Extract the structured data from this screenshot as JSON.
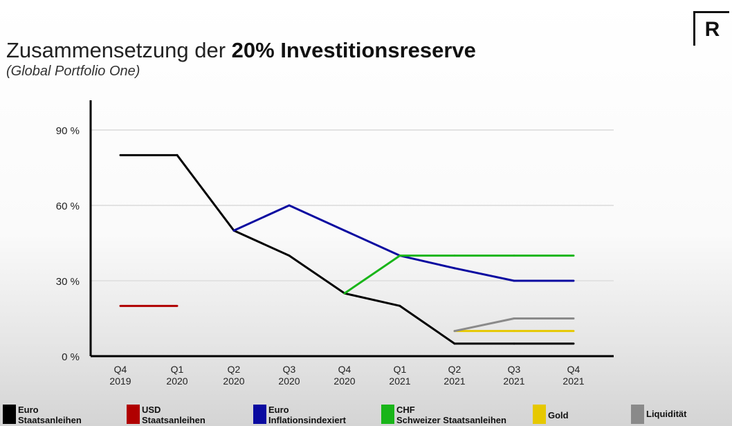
{
  "header": {
    "title_normal": "Zusammensetzung der ",
    "title_bold": "20% Investitionsreserve",
    "subtitle": "(Global Portfolio One)",
    "logo_letter": "R"
  },
  "chart_data": {
    "type": "line",
    "title": "Zusammensetzung der 20% Investitionsreserve",
    "subtitle": "(Global Portfolio One)",
    "xlabel": "",
    "ylabel": "",
    "ylim": [
      0,
      100
    ],
    "grid": true,
    "legend_position": "bottom",
    "y_ticks": [
      {
        "value": 0,
        "label": "0 %"
      },
      {
        "value": 30,
        "label": "30 %"
      },
      {
        "value": 60,
        "label": "60 %"
      },
      {
        "value": 90,
        "label": "90 %"
      }
    ],
    "categories": [
      {
        "q": "Q4",
        "y": "2019"
      },
      {
        "q": "Q1",
        "y": "2020"
      },
      {
        "q": "Q2",
        "y": "2020"
      },
      {
        "q": "Q3",
        "y": "2020"
      },
      {
        "q": "Q4",
        "y": "2020"
      },
      {
        "q": "Q1",
        "y": "2021"
      },
      {
        "q": "Q2",
        "y": "2021"
      },
      {
        "q": "Q3",
        "y": "2021"
      },
      {
        "q": "Q4",
        "y": "2021"
      }
    ],
    "series": [
      {
        "key": "euro_staat",
        "name": "Euro Staatsanleihen",
        "label_line1": "Euro",
        "label_line2": "Staatsanleihen",
        "color": "#000000",
        "values": [
          80,
          80,
          50,
          40,
          25,
          20,
          5,
          5,
          5
        ]
      },
      {
        "key": "usd_staat",
        "name": "USD Staatsanleihen",
        "label_line1": "USD",
        "label_line2": "Staatsanleihen",
        "color": "#b00000",
        "values": [
          20,
          20,
          null,
          null,
          null,
          null,
          null,
          null,
          null
        ]
      },
      {
        "key": "euro_infl",
        "name": "Euro Inflationsindexiert",
        "label_line1": "Euro",
        "label_line2": "Inflationsindexiert",
        "color": "#0a0aa0",
        "values": [
          null,
          null,
          50,
          60,
          50,
          40,
          35,
          30,
          30
        ]
      },
      {
        "key": "chf",
        "name": "CHF Schweizer Staatsanleihen",
        "label_line1": "CHF",
        "label_line2": "Schweizer Staatsanleihen",
        "color": "#19b519",
        "values": [
          null,
          null,
          null,
          null,
          25,
          40,
          40,
          40,
          40
        ]
      },
      {
        "key": "gold",
        "name": "Gold",
        "label_line1": "Gold",
        "label_line2": "",
        "color": "#e6c800",
        "values": [
          null,
          null,
          null,
          null,
          null,
          null,
          10,
          10,
          10
        ]
      },
      {
        "key": "liq",
        "name": "Liquidität",
        "label_line1": "Liquidität",
        "label_line2": "",
        "color": "#8a8a8a",
        "values": [
          null,
          null,
          null,
          null,
          null,
          null,
          10,
          15,
          15
        ]
      }
    ]
  }
}
